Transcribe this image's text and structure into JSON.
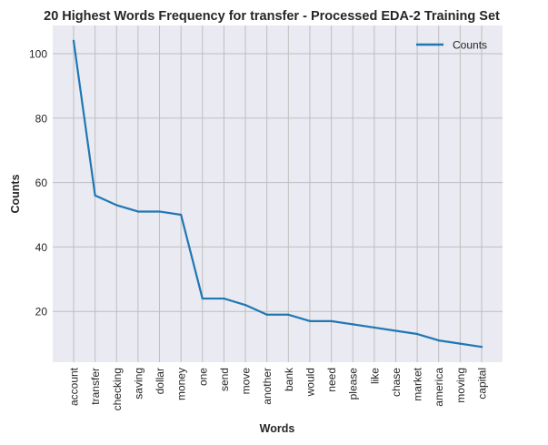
{
  "chart_data": {
    "type": "line",
    "title": "20 Highest Words Frequency for transfer - Processed EDA-2 Training Set",
    "xlabel": "Words",
    "ylabel": "Counts",
    "categories": [
      "account",
      "transfer",
      "checking",
      "saving",
      "dollar",
      "money",
      "one",
      "send",
      "move",
      "another",
      "bank",
      "would",
      "need",
      "please",
      "like",
      "chase",
      "market",
      "america",
      "moving",
      "capital"
    ],
    "series": [
      {
        "name": "Counts",
        "values": [
          104,
          56,
          53,
          51,
          51,
          50,
          24,
          24,
          22,
          19,
          19,
          17,
          17,
          16,
          15,
          14,
          13,
          11,
          10,
          9
        ]
      }
    ],
    "ylim": [
      4.25,
      108.75
    ],
    "yticks": [
      20,
      40,
      60,
      80,
      100
    ],
    "grid": true,
    "legend": "top-right",
    "colors": {
      "line": "#1f77b4",
      "plot_background": "#eaeaf2",
      "grid": "#bfbfbf"
    }
  }
}
